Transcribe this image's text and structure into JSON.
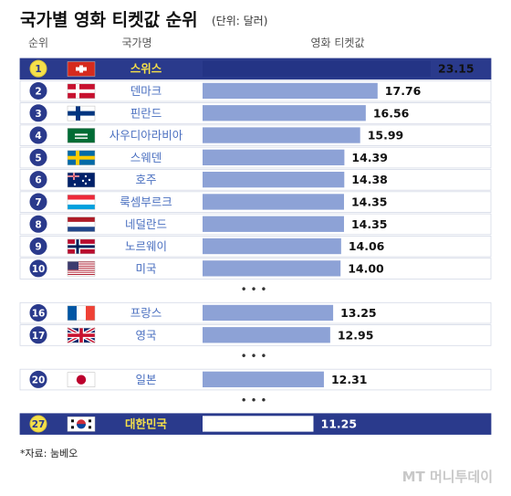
{
  "chart_data": {
    "type": "bar",
    "orientation": "horizontal",
    "title": "국가별 영화 티켓값 순위",
    "unit_note": "(단위: 달러)",
    "columns": {
      "rank": "순위",
      "country": "국가명",
      "value": "영화 티켓값"
    },
    "rows": [
      {
        "rank": "1",
        "country": "스위스",
        "flag": "switzerland-flag-icon",
        "value": 23.15,
        "value_label": "23.15",
        "highlight": true
      },
      {
        "rank": "2",
        "country": "덴마크",
        "flag": "denmark-flag-icon",
        "value": 17.76,
        "value_label": "17.76"
      },
      {
        "rank": "3",
        "country": "핀란드",
        "flag": "finland-flag-icon",
        "value": 16.56,
        "value_label": "16.56"
      },
      {
        "rank": "4",
        "country": "사우디아라비아",
        "flag": "saudi-arabia-flag-icon",
        "value": 15.99,
        "value_label": "15.99"
      },
      {
        "rank": "5",
        "country": "스웨덴",
        "flag": "sweden-flag-icon",
        "value": 14.39,
        "value_label": "14.39"
      },
      {
        "rank": "6",
        "country": "호주",
        "flag": "australia-flag-icon",
        "value": 14.38,
        "value_label": "14.38"
      },
      {
        "rank": "7",
        "country": "룩셈부르크",
        "flag": "luxembourg-flag-icon",
        "value": 14.35,
        "value_label": "14.35"
      },
      {
        "rank": "8",
        "country": "네덜란드",
        "flag": "netherlands-flag-icon",
        "value": 14.35,
        "value_label": "14.35"
      },
      {
        "rank": "9",
        "country": "노르웨이",
        "flag": "norway-flag-icon",
        "value": 14.06,
        "value_label": "14.06"
      },
      {
        "rank": "10",
        "country": "미국",
        "flag": "usa-flag-icon",
        "value": 14.0,
        "value_label": "14.00"
      },
      {
        "ellipsis": "• • •"
      },
      {
        "rank": "16",
        "country": "프랑스",
        "flag": "france-flag-icon",
        "value": 13.25,
        "value_label": "13.25"
      },
      {
        "rank": "17",
        "country": "영국",
        "flag": "uk-flag-icon",
        "value": 12.95,
        "value_label": "12.95"
      },
      {
        "ellipsis": "• • •"
      },
      {
        "rank": "20",
        "country": "일본",
        "flag": "japan-flag-icon",
        "value": 12.31,
        "value_label": "12.31"
      },
      {
        "ellipsis": "• • •"
      },
      {
        "rank": "27",
        "country": "대한민국",
        "flag": "south-korea-flag-icon",
        "value": 11.25,
        "value_label": "11.25",
        "highlight": true
      }
    ],
    "source": "*자료: 눔베오",
    "colors": {
      "highlight_row": "#2a3a8c",
      "highlight_text": "#f5e04a",
      "bar": "#8da2d6",
      "top_bar": "#243485",
      "circle": "#2a3a8c",
      "label": "#4a6fc0"
    }
  },
  "watermark": "MT 머니투데이"
}
